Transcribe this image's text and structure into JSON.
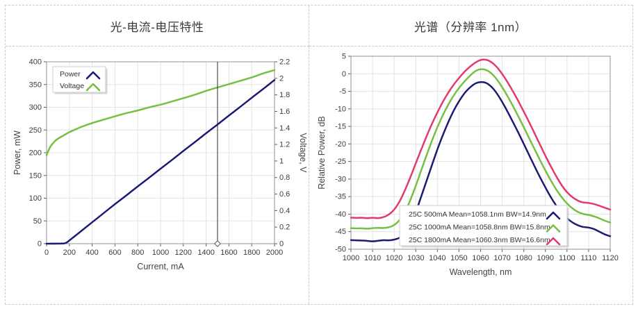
{
  "panels": {
    "left": {
      "title": "光-电流-电压特性"
    },
    "right": {
      "title": "光谱（分辨率 1nm）"
    }
  },
  "colors": {
    "navy": "#1b1b75",
    "green": "#75c044",
    "pink": "#e23a6d",
    "grid": "#e3e3e3",
    "frame": "#919191",
    "tick": "#5a5a5a",
    "label_text": "#3b3b3b",
    "axis_title_text": "#444444",
    "cursor": "#2b2b2b",
    "legend_border": "#cfcfcf",
    "legend_shadow": "#c4c4c4",
    "legend_text": "#333333"
  },
  "chart_data": [
    {
      "type": "line",
      "title": "光-电流-电压特性",
      "xlabel": "Current, mA",
      "ylabel_left": "Power, mW",
      "ylabel_right": "Voltage, V",
      "xlim": [
        0,
        2000
      ],
      "x_tick_step": 200,
      "ylim_left": [
        0,
        400
      ],
      "y_left_tick_step": 50,
      "ylim_right": [
        0,
        2.2
      ],
      "y_right_tick_step": 0.2,
      "grid": true,
      "legend_position": "top-left",
      "cursor_x_mA": 1500,
      "series": [
        {
          "name": "Power",
          "axis": "left",
          "color_key": "navy",
          "x": [
            0,
            140,
            170,
            200,
            250,
            300,
            400,
            500,
            600,
            700,
            800,
            900,
            1000,
            1100,
            1200,
            1300,
            1400,
            1500,
            1600,
            1700,
            1800,
            1900,
            2000
          ],
          "y": [
            0,
            0,
            1,
            7,
            17,
            27,
            47,
            67,
            87,
            106,
            126,
            145,
            165,
            184,
            204,
            223,
            243,
            262,
            282,
            301,
            321,
            340,
            360
          ]
        },
        {
          "name": "Voltage",
          "axis": "right",
          "color_key": "green",
          "x": [
            0,
            20,
            40,
            60,
            80,
            100,
            150,
            200,
            250,
            300,
            400,
            500,
            600,
            700,
            800,
            900,
            1000,
            1100,
            1200,
            1300,
            1400,
            1500,
            1600,
            1700,
            1800,
            1900,
            2000
          ],
          "y": [
            1.07,
            1.14,
            1.19,
            1.22,
            1.25,
            1.27,
            1.31,
            1.35,
            1.38,
            1.41,
            1.46,
            1.5,
            1.54,
            1.58,
            1.61,
            1.65,
            1.68,
            1.72,
            1.76,
            1.8,
            1.85,
            1.89,
            1.93,
            1.97,
            2.01,
            2.06,
            2.1
          ]
        }
      ]
    },
    {
      "type": "line",
      "title": "光谱（分辨率 1nm）",
      "xlabel": "Wavelength, nm",
      "ylabel_left": "Relative Power, dB",
      "xlim": [
        1000,
        1120
      ],
      "x_tick_step": 10,
      "ylim_left": [
        -50,
        5
      ],
      "y_left_tick_step": 5,
      "grid": true,
      "legend_position": "bottom-center",
      "x_shared": [
        1000,
        1002.5,
        1005,
        1007.5,
        1010,
        1012.5,
        1015,
        1017.5,
        1020,
        1022.5,
        1025,
        1027.5,
        1030,
        1032.5,
        1035,
        1037.5,
        1040,
        1042.5,
        1045,
        1047.5,
        1050,
        1052.5,
        1055,
        1057.5,
        1060,
        1062.5,
        1065,
        1067.5,
        1070,
        1072.5,
        1075,
        1077.5,
        1080,
        1082.5,
        1085,
        1087.5,
        1090,
        1092.5,
        1095,
        1097.5,
        1100,
        1102.5,
        1105,
        1107.5,
        1110,
        1112.5,
        1115,
        1117.5,
        1120
      ],
      "series": [
        {
          "name": "25C 500mA Mean=1058.1nm BW=14.9nm",
          "axis": "left",
          "color_key": "navy",
          "y": [
            -47.4,
            -47.5,
            -47.5,
            -47.6,
            -47.8,
            -47.6,
            -47.4,
            -47.5,
            -47.3,
            -46.8,
            -45.5,
            -43.0,
            -39.5,
            -35.0,
            -30.5,
            -26.0,
            -21.5,
            -17.5,
            -13.8,
            -10.5,
            -7.8,
            -5.5,
            -3.9,
            -2.7,
            -2.3,
            -2.5,
            -3.6,
            -5.5,
            -8.0,
            -10.8,
            -13.8,
            -16.8,
            -20.0,
            -23.2,
            -26.4,
            -29.5,
            -32.4,
            -35.2,
            -37.6,
            -39.6,
            -41.2,
            -42.4,
            -43.2,
            -43.7,
            -43.8,
            -44.2,
            -45.0,
            -45.8,
            -46.3
          ]
        },
        {
          "name": "25C 1000mA Mean=1058.8nm BW=15.8nm",
          "axis": "left",
          "color_key": "green",
          "y": [
            -44.0,
            -44.1,
            -44.0,
            -44.2,
            -44.0,
            -43.9,
            -44.0,
            -43.8,
            -43.2,
            -41.8,
            -39.5,
            -36.0,
            -32.0,
            -27.5,
            -23.2,
            -19.0,
            -15.2,
            -11.8,
            -8.8,
            -6.2,
            -4.0,
            -2.2,
            -0.6,
            0.8,
            1.4,
            1.2,
            0.2,
            -1.5,
            -3.8,
            -6.4,
            -9.2,
            -12.2,
            -15.2,
            -18.4,
            -21.5,
            -24.6,
            -27.6,
            -30.4,
            -33.0,
            -35.2,
            -37.0,
            -38.4,
            -39.4,
            -40.0,
            -40.2,
            -40.6,
            -41.2,
            -41.9,
            -42.4
          ]
        },
        {
          "name": "25C 1800mA Mean=1060.3nm BW=16.6nm",
          "axis": "left",
          "color_key": "pink",
          "y": [
            -41.0,
            -41.1,
            -41.0,
            -41.2,
            -41.0,
            -41.2,
            -40.9,
            -40.2,
            -38.8,
            -36.5,
            -33.2,
            -29.5,
            -25.5,
            -21.6,
            -17.8,
            -14.2,
            -11.0,
            -8.0,
            -5.4,
            -3.1,
            -1.2,
            0.6,
            2.0,
            3.2,
            4.0,
            4.1,
            3.4,
            2.0,
            0.0,
            -2.4,
            -5.0,
            -7.8,
            -10.8,
            -13.8,
            -17.0,
            -20.2,
            -23.4,
            -26.4,
            -29.2,
            -31.8,
            -33.8,
            -35.2,
            -36.2,
            -36.7,
            -36.8,
            -37.1,
            -37.6,
            -38.2,
            -38.7
          ]
        }
      ]
    }
  ]
}
